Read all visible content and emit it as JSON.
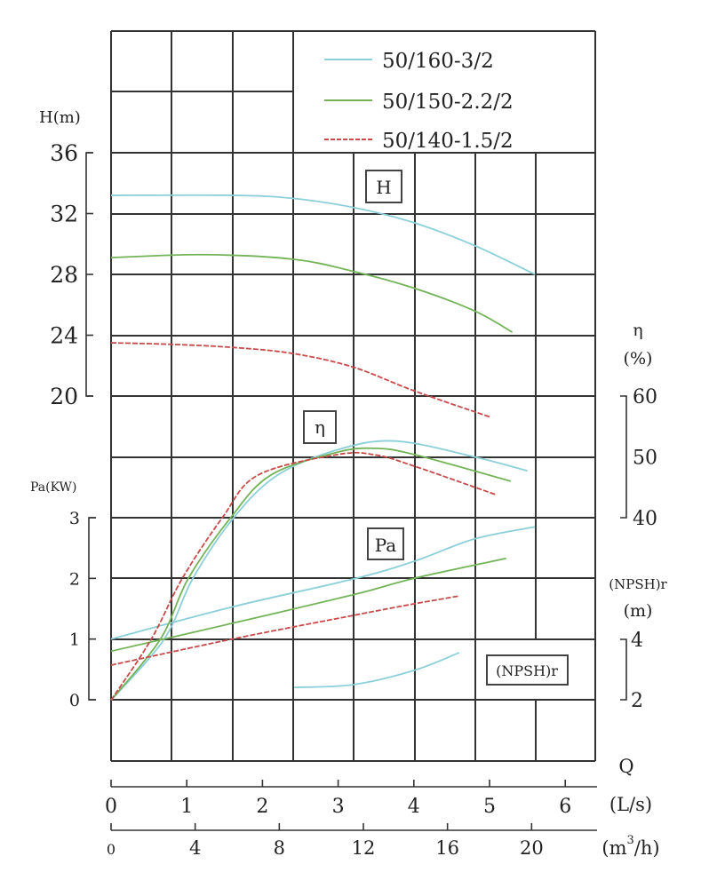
{
  "chart_data": {
    "type": "line",
    "legend": {
      "placement": "top-right"
    },
    "grid": true,
    "colors": {
      "50/160-3/2": "#8ccfd9",
      "50/150-2.2/2": "#74b458",
      "50/140-1.5/2": "#c94a4a"
    },
    "x_axes": [
      {
        "label": "(L/s)",
        "ticks": [
          "0",
          "1",
          "2",
          "3",
          "4",
          "5",
          "6"
        ],
        "range": [
          0,
          6.4
        ]
      },
      {
        "label": "(m³/h)",
        "label_base": "(m",
        "label_sup": "3",
        "label_tail": "/h)",
        "ticks": [
          "0",
          "4",
          "8",
          "12",
          "16",
          "20"
        ],
        "range": [
          0,
          23
        ]
      }
    ],
    "x_title": "Q",
    "y_axes": {
      "H": {
        "label": "H(m)",
        "ticks": [
          "20",
          "24",
          "28",
          "32",
          "36"
        ],
        "range": [
          20,
          36
        ]
      },
      "eta": {
        "label_line1": "η",
        "label_line2": "(%)",
        "ticks": [
          "40",
          "50",
          "60"
        ],
        "range": [
          40,
          60
        ]
      },
      "Pa": {
        "label": "Pa(KW)",
        "ticks": [
          "0",
          "1",
          "2",
          "3"
        ],
        "range": [
          0,
          3
        ]
      },
      "NPSH": {
        "label_line1": "(NPSH)r",
        "label_line2": "(m)",
        "ticks": [
          "2",
          "4"
        ],
        "range": [
          2,
          4
        ]
      }
    },
    "curve_labels": {
      "H": "H",
      "eta": "η",
      "Pa": "Pa",
      "NPSH": "(NPSH)r"
    },
    "series": [
      {
        "name": "50/160-3/2",
        "H": [
          [
            0,
            33.2
          ],
          [
            1.6,
            33.2
          ],
          [
            2.4,
            33.0
          ],
          [
            3.2,
            32.4
          ],
          [
            4.0,
            31.4
          ],
          [
            4.8,
            29.9
          ],
          [
            5.6,
            28.0
          ]
        ],
        "eta": [
          [
            0,
            10
          ],
          [
            0.7,
            20
          ],
          [
            1.08,
            30
          ],
          [
            1.62,
            40
          ],
          [
            2.2,
            47
          ],
          [
            3.0,
            51.2
          ],
          [
            3.76,
            52.6
          ],
          [
            4.8,
            50
          ],
          [
            5.5,
            47.7
          ]
        ],
        "Pa": [
          [
            0,
            1.0
          ],
          [
            1.6,
            1.53
          ],
          [
            3.2,
            1.99
          ],
          [
            4.0,
            2.28
          ],
          [
            4.8,
            2.65
          ],
          [
            5.6,
            2.85
          ]
        ],
        "NPSH": [
          [
            2.42,
            2.41
          ],
          [
            3.2,
            2.5
          ],
          [
            4.0,
            2.97
          ],
          [
            4.6,
            3.56
          ]
        ]
      },
      {
        "name": "50/150-2.2/2",
        "H": [
          [
            0,
            29.1
          ],
          [
            1.2,
            29.3
          ],
          [
            2.4,
            29.0
          ],
          [
            3.2,
            28.2
          ],
          [
            4.0,
            27.1
          ],
          [
            4.8,
            25.6
          ],
          [
            5.3,
            24.2
          ]
        ],
        "eta": [
          [
            0,
            10
          ],
          [
            0.65,
            20
          ],
          [
            1.02,
            30
          ],
          [
            1.58,
            40
          ],
          [
            2.11,
            47
          ],
          [
            3.0,
            50.8
          ],
          [
            3.5,
            51.4
          ],
          [
            4.0,
            50.4
          ],
          [
            5.28,
            46
          ]
        ],
        "Pa": [
          [
            0,
            0.8
          ],
          [
            1.6,
            1.26
          ],
          [
            3.2,
            1.73
          ],
          [
            4.0,
            2.0
          ],
          [
            5.22,
            2.33
          ]
        ]
      },
      {
        "name": "50/140-1.5/2",
        "H": [
          [
            0,
            23.5
          ],
          [
            0.8,
            23.4
          ],
          [
            1.6,
            23.2
          ],
          [
            2.4,
            22.8
          ],
          [
            3.2,
            21.9
          ],
          [
            4.0,
            20.35
          ],
          [
            5.02,
            18.6
          ]
        ],
        "eta": [
          [
            0,
            10
          ],
          [
            0.53,
            20
          ],
          [
            0.94,
            30
          ],
          [
            1.47,
            40
          ],
          [
            1.94,
            47
          ],
          [
            3.0,
            50.4
          ],
          [
            3.5,
            50.3
          ],
          [
            4.0,
            48.5
          ],
          [
            5.08,
            43.8
          ]
        ],
        "Pa": [
          [
            0,
            0.57
          ],
          [
            1.6,
            1.0
          ],
          [
            3.2,
            1.39
          ],
          [
            4.0,
            1.58
          ],
          [
            4.6,
            1.71
          ]
        ]
      }
    ]
  }
}
